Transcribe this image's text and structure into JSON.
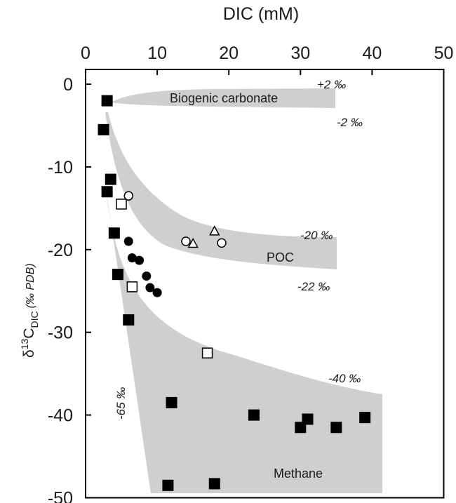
{
  "chart_data": {
    "type": "scatter",
    "xlabel": "DIC  (mM)",
    "ylabel": {
      "delta": "δ",
      "sup": "13",
      "base": "C",
      "sub": "DIC",
      "unit": "(‰ PDB)"
    },
    "xlim": [
      0,
      50
    ],
    "ylim": [
      -50,
      0
    ],
    "x_axis_position": "top",
    "x_ticks": [
      0,
      10,
      20,
      30,
      40,
      50
    ],
    "y_ticks": [
      0,
      -10,
      -20,
      -30,
      -40,
      -50
    ],
    "grid": false,
    "colors": {
      "band": "#cfcfcf",
      "filled": "#000000",
      "open_fill": "#ffffff",
      "open_stroke": "#000000",
      "frame": "#000000"
    },
    "series": [
      {
        "marker": "filled-square",
        "points": [
          [
            3,
            -2
          ],
          [
            2.5,
            -5.5
          ],
          [
            3.5,
            -11.5
          ],
          [
            3,
            -13
          ],
          [
            4,
            -18
          ],
          [
            4.5,
            -23
          ],
          [
            6,
            -28.5
          ],
          [
            12,
            -38.5
          ],
          [
            11.5,
            -48.5
          ],
          [
            18,
            -48.3
          ],
          [
            23.5,
            -40
          ],
          [
            30,
            -41.5
          ],
          [
            31,
            -40.5
          ],
          [
            35,
            -41.5
          ],
          [
            39,
            -40.3
          ]
        ]
      },
      {
        "marker": "filled-circle",
        "points": [
          [
            6,
            -19
          ],
          [
            6.5,
            -21
          ],
          [
            7.5,
            -21.3
          ],
          [
            8.5,
            -23.2
          ],
          [
            9,
            -24.6
          ],
          [
            10,
            -25.2
          ]
        ]
      },
      {
        "marker": "open-square",
        "points": [
          [
            5,
            -14.5
          ],
          [
            6.5,
            -24.5
          ],
          [
            17,
            -32.5
          ]
        ]
      },
      {
        "marker": "open-circle",
        "points": [
          [
            6,
            -13.5
          ],
          [
            14,
            -19
          ],
          [
            19,
            -19.2
          ]
        ]
      },
      {
        "marker": "open-triangle",
        "points": [
          [
            15,
            -19.3
          ],
          [
            18,
            -17.8
          ]
        ]
      }
    ],
    "regions": [
      {
        "label": "Biogenic carbonate",
        "bound_labels": [
          "+2 ‰",
          "-2 ‰"
        ]
      },
      {
        "label": "POC",
        "bound_labels": [
          "-20 ‰",
          "-22 ‰"
        ]
      },
      {
        "label": "Methane",
        "bound_labels": [
          "-65 ‰",
          "-40 ‰"
        ]
      }
    ]
  }
}
